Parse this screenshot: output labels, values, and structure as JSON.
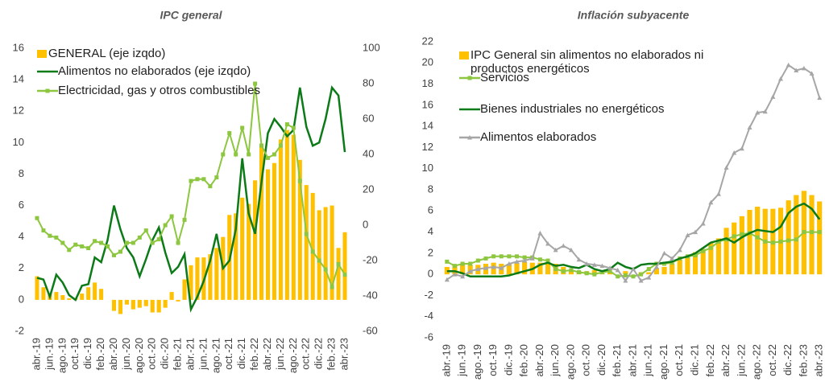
{
  "chart_data": [
    {
      "type": "combo",
      "title": "IPC general",
      "categories": [
        "abr.-19",
        null,
        "jun.-19",
        null,
        "ago.-19",
        null,
        "oct.-19",
        null,
        "dic.-19",
        null,
        "feb.-20",
        null,
        "abr.-20",
        null,
        "jun.-20",
        null,
        "ago.-20",
        null,
        "oct.-20",
        null,
        "dic.-20",
        null,
        "feb.-21",
        null,
        "abr.-21",
        null,
        "jun.-21",
        null,
        "ago.-21",
        null,
        "oct.-21",
        null,
        "dic.-21",
        null,
        "feb.-22",
        null,
        "abr.-22",
        null,
        "jun.-22",
        null,
        "ago.-22",
        null,
        "oct.-22",
        null,
        "dic.-22",
        null,
        "feb.-23",
        null,
        "abr.-23"
      ],
      "series": [
        {
          "name": "GENERAL (eje izqdo)",
          "type": "bar",
          "color": "#ffc000",
          "values": [
            1.5,
            0.8,
            0.4,
            0.5,
            0.3,
            0.1,
            0.1,
            0.4,
            0.8,
            1.1,
            0.7,
            0.0,
            -0.7,
            -0.9,
            -0.3,
            -0.6,
            -0.5,
            -0.4,
            -0.8,
            -0.8,
            -0.5,
            0.5,
            -0.1,
            1.3,
            2.2,
            2.7,
            2.7,
            2.9,
            3.3,
            4.0,
            5.4,
            5.5,
            6.5,
            6.1,
            7.6,
            9.8,
            8.3,
            8.7,
            10.2,
            10.8,
            10.5,
            8.9,
            7.3,
            6.8,
            5.7,
            5.9,
            6.0,
            3.3,
            4.3
          ]
        },
        {
          "name": "Alimentos no elaborados (eje izqdo)",
          "type": "line",
          "color": "#0b7a17",
          "values": [
            1.4,
            1.3,
            0.2,
            1.6,
            1.1,
            0.3,
            0.0,
            0.9,
            1.0,
            2.7,
            2.4,
            3.8,
            6.0,
            4.5,
            3.3,
            2.7,
            1.5,
            2.6,
            3.8,
            4.6,
            3.0,
            1.7,
            2.1,
            2.9,
            -0.6,
            0.2,
            1.2,
            2.5,
            4.2,
            2.0,
            2.5,
            4.5,
            9.0,
            5.5,
            4.2,
            7.5,
            10.6,
            11.5,
            11.0,
            10.4,
            10.8,
            13.5,
            11.0,
            9.8,
            10.0,
            11.5,
            13.5,
            13.0,
            9.4
          ]
        },
        {
          "name": "Electricidad, gas y otros combustibles",
          "type": "line",
          "color": "#8dc63f",
          "marker": "square",
          "axis": "y2",
          "values": [
            4,
            -3,
            -6,
            -7,
            -10,
            -14,
            -11,
            -12,
            -13,
            -9,
            -10,
            -12,
            -17,
            -15,
            -10,
            -10,
            -7,
            -3,
            -10,
            -8,
            0,
            5,
            -10,
            3,
            25,
            26,
            26,
            22,
            27,
            40,
            52,
            40,
            55,
            40,
            80,
            45,
            38,
            40,
            45,
            57,
            55,
            25,
            -5,
            -15,
            -20,
            -25,
            -35,
            -22,
            -28
          ]
        }
      ],
      "ylim": [
        -2,
        16
      ],
      "yticks": [
        -2,
        0,
        2,
        4,
        6,
        8,
        10,
        12,
        14,
        16
      ],
      "y2lim": [
        -60,
        100
      ],
      "y2ticks": [
        -60,
        -40,
        -20,
        0,
        20,
        40,
        60,
        80,
        100
      ],
      "grid": false,
      "legend": "top-left"
    },
    {
      "type": "combo",
      "title": "Inflación subyacente",
      "categories": [
        "abr.-19",
        null,
        "jun.-19",
        null,
        "ago.-19",
        null,
        "oct.-19",
        null,
        "dic.-19",
        null,
        "feb.-20",
        null,
        "abr.-20",
        null,
        "jun.-20",
        null,
        "ago.-20",
        null,
        "oct.-20",
        null,
        "dic.-20",
        null,
        "feb.-21",
        null,
        "abr.-21",
        null,
        "jun.-21",
        null,
        "ago.-21",
        null,
        "oct.-21",
        null,
        "dic.-21",
        null,
        "feb.-22",
        null,
        "abr.-22",
        null,
        "jun.-22",
        null,
        "ago.-22",
        null,
        "oct.-22",
        null,
        "dic.-22",
        null,
        "feb.-23",
        null,
        "abr.-23"
      ],
      "series": [
        {
          "name": "IPC General sin alimentos no elaborados ni productos energéticos",
          "type": "bar",
          "color": "#ffc000",
          "values": [
            0.7,
            0.9,
            1.0,
            0.9,
            0.9,
            1.0,
            1.1,
            1.0,
            1.0,
            1.1,
            1.2,
            1.1,
            1.1,
            1.1,
            1.0,
            0.7,
            0.4,
            0.3,
            0.3,
            0.4,
            0.1,
            0.2,
            0.0,
            0.3,
            0.0,
            0.2,
            0.2,
            0.6,
            0.7,
            1.0,
            1.4,
            1.7,
            2.1,
            2.4,
            3.0,
            3.4,
            4.4,
            4.9,
            5.5,
            6.1,
            6.4,
            6.2,
            6.2,
            6.3,
            7.0,
            7.5,
            7.9,
            7.5,
            6.9
          ]
        },
        {
          "name": "Servicios",
          "type": "line",
          "color": "#8dc63f",
          "marker": "square",
          "values": [
            1.2,
            0.8,
            1.0,
            1.0,
            1.3,
            1.5,
            1.7,
            1.7,
            1.7,
            1.7,
            1.6,
            1.6,
            1.4,
            1.3,
            0.5,
            0.3,
            0.4,
            0.2,
            0.1,
            0.0,
            0.2,
            0.3,
            -0.2,
            -0.1,
            -0.2,
            0.0,
            0.5,
            1.0,
            1.0,
            1.1,
            1.5,
            1.7,
            1.8,
            2.2,
            2.5,
            3.1,
            3.3,
            3.6,
            3.8,
            3.9,
            3.5,
            3.1,
            3.0,
            3.1,
            3.2,
            3.3,
            4.0,
            4.0,
            4.0
          ]
        },
        {
          "name": "Bienes industriales no energéticos",
          "type": "line",
          "color": "#0b7a17",
          "values": [
            0.3,
            0.3,
            0.1,
            -0.2,
            -0.2,
            -0.2,
            -0.2,
            -0.2,
            -0.1,
            0.1,
            0.3,
            0.5,
            0.9,
            1.1,
            0.8,
            0.9,
            0.7,
            0.6,
            0.9,
            0.5,
            0.3,
            0.5,
            1.1,
            0.7,
            0.5,
            0.9,
            1.0,
            1.0,
            1.1,
            1.2,
            1.5,
            1.7,
            2.0,
            2.5,
            3.0,
            3.2,
            3.4,
            3.0,
            3.5,
            3.9,
            4.2,
            4.1,
            4.0,
            4.5,
            5.8,
            6.4,
            6.7,
            6.2,
            5.2
          ]
        },
        {
          "name": "Alimentos elaborados",
          "type": "line",
          "color": "#a6a6a6",
          "marker": "triangle",
          "values": [
            -0.5,
            0.0,
            -0.2,
            0.3,
            0.5,
            0.6,
            0.7,
            0.6,
            1.0,
            1.2,
            1.3,
            1.5,
            3.9,
            2.9,
            2.3,
            2.7,
            2.3,
            1.4,
            1.0,
            0.9,
            0.8,
            0.6,
            0.4,
            -0.6,
            0.5,
            -0.6,
            -0.3,
            0.7,
            2.0,
            1.5,
            2.3,
            3.7,
            4.0,
            4.8,
            6.8,
            7.6,
            10.1,
            11.5,
            11.9,
            13.9,
            15.3,
            15.4,
            16.8,
            18.5,
            19.8,
            19.3,
            19.5,
            19.0,
            16.7
          ]
        }
      ],
      "ylim": [
        -6,
        22
      ],
      "yticks": [
        -6,
        -4,
        -2,
        0,
        2,
        4,
        6,
        8,
        10,
        12,
        14,
        16,
        18,
        20,
        22
      ],
      "grid": false,
      "legend": "top-left"
    }
  ]
}
